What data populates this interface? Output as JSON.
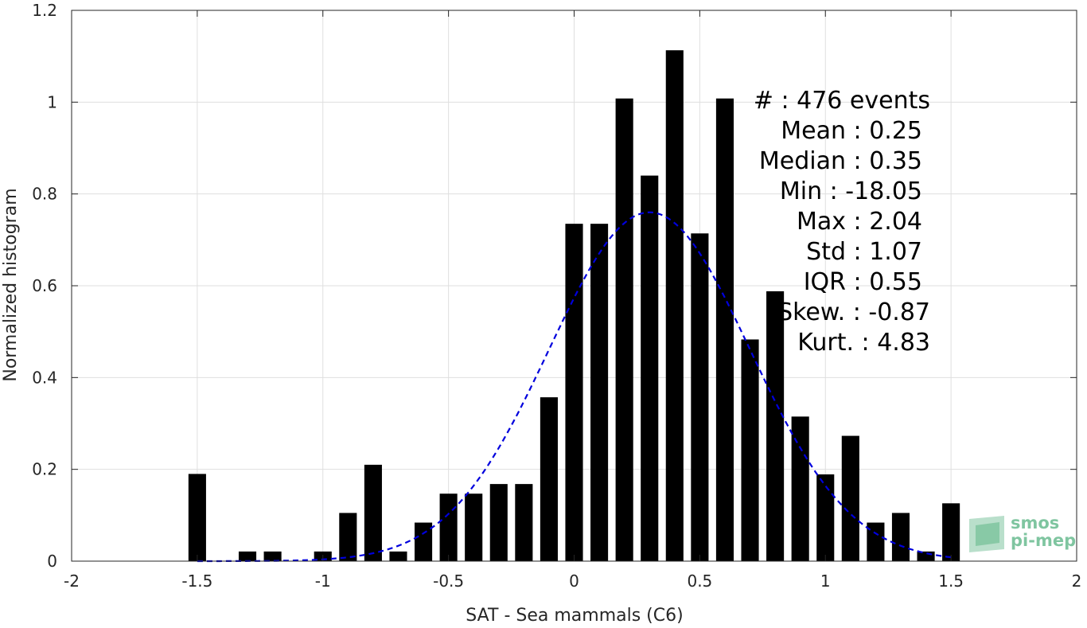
{
  "chart_data": {
    "type": "bar",
    "xlabel": "SAT - Sea mammals (C6)",
    "ylabel": "Normalized histogram",
    "xlim": [
      -2,
      2
    ],
    "ylim": [
      0,
      1.2
    ],
    "xticks": [
      -2,
      -1.5,
      -1,
      -0.5,
      0,
      0.5,
      1,
      1.5,
      2
    ],
    "xtick_labels": [
      "-2",
      "-1.5",
      "-1",
      "-0.5",
      "0",
      "0.5",
      "1",
      "1.5",
      "2"
    ],
    "yticks": [
      0,
      0.2,
      0.4,
      0.6,
      0.8,
      1,
      1.2
    ],
    "ytick_labels": [
      "0",
      "0.2",
      "0.4",
      "0.6",
      "0.8",
      "1",
      "1.2"
    ],
    "grid": true,
    "bar_width": 0.07,
    "bars": [
      {
        "x": -1.5,
        "y": 0.19
      },
      {
        "x": -1.3,
        "y": 0.021
      },
      {
        "x": -1.2,
        "y": 0.021
      },
      {
        "x": -1.0,
        "y": 0.021
      },
      {
        "x": -0.9,
        "y": 0.105
      },
      {
        "x": -0.8,
        "y": 0.21
      },
      {
        "x": -0.7,
        "y": 0.021
      },
      {
        "x": -0.6,
        "y": 0.084
      },
      {
        "x": -0.5,
        "y": 0.147
      },
      {
        "x": -0.4,
        "y": 0.147
      },
      {
        "x": -0.3,
        "y": 0.168
      },
      {
        "x": -0.2,
        "y": 0.168
      },
      {
        "x": -0.1,
        "y": 0.357
      },
      {
        "x": 0.0,
        "y": 0.735
      },
      {
        "x": 0.1,
        "y": 0.735
      },
      {
        "x": 0.2,
        "y": 1.008
      },
      {
        "x": 0.3,
        "y": 0.84
      },
      {
        "x": 0.4,
        "y": 1.113
      },
      {
        "x": 0.5,
        "y": 0.714
      },
      {
        "x": 0.6,
        "y": 1.008
      },
      {
        "x": 0.7,
        "y": 0.483
      },
      {
        "x": 0.8,
        "y": 0.588
      },
      {
        "x": 0.9,
        "y": 0.315
      },
      {
        "x": 1.0,
        "y": 0.189
      },
      {
        "x": 1.1,
        "y": 0.273
      },
      {
        "x": 1.2,
        "y": 0.084
      },
      {
        "x": 1.3,
        "y": 0.105
      },
      {
        "x": 1.4,
        "y": 0.021
      },
      {
        "x": 1.5,
        "y": 0.126
      }
    ],
    "fit_curve": {
      "style": "dashed",
      "color": "#0000dd",
      "mean": 0.3,
      "peak": 0.76,
      "x_range": [
        -1.5,
        1.5
      ],
      "note_visible": ""
    },
    "bar_color": "#000000",
    "stats_lines": [
      "#   : 476 events",
      "Mean : 0.25",
      "Median : 0.35",
      "Min : -18.05",
      "Max : 2.04",
      "Std : 1.07",
      "IQR : 0.55",
      "Skew. : -0.87",
      "Kurt. : 4.83"
    ],
    "logo": {
      "line1": "smos",
      "line2": "pi-mep",
      "color": "#7fc5a0"
    }
  }
}
